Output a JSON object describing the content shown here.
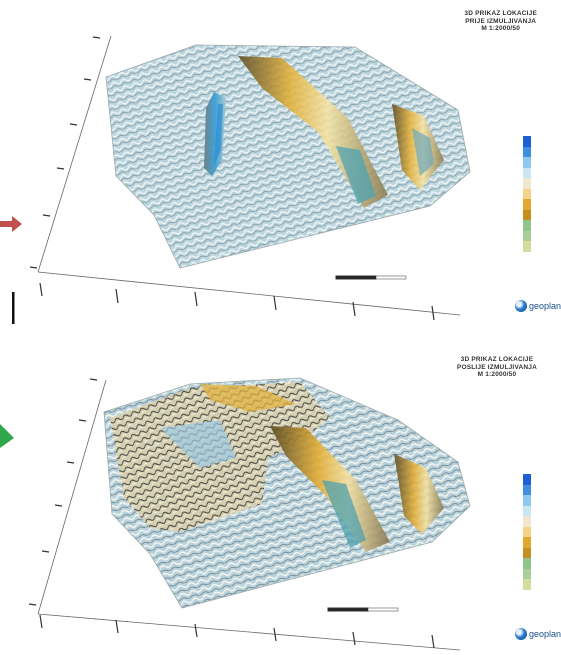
{
  "top": {
    "title_lines": [
      "3D PRIKAZ LOKACIJE",
      "PRIJE IZMULJIVANJA",
      "M 1:2000/50"
    ]
  },
  "bottom": {
    "title_lines": [
      "3D PRIKAZ LOKACIJE",
      "POSLIJE IZMULJIVANJA",
      "M 1:2000/50"
    ]
  },
  "logo_text": "geoplan",
  "legend_colors": [
    "#1f5fd6",
    "#3f8fe0",
    "#8fc7ee",
    "#c9e6f3",
    "#efe8cf",
    "#f3d28a",
    "#e3a62f",
    "#c68f22",
    "#cfc9a0",
    "#8fc48a",
    "#a8cf9a",
    "#d2dd9e"
  ],
  "arrow_colors": {
    "red": "#c0504d",
    "green": "#2ea84a"
  }
}
